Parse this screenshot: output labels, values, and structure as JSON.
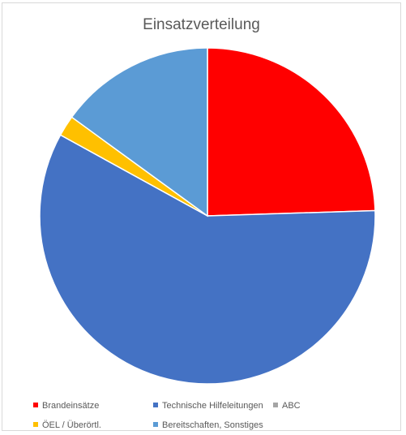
{
  "chart_data": {
    "type": "pie",
    "title": "Einsatzverteilung",
    "categories": [
      "Brandeinsätze",
      "Technische Hilfeleitungen",
      "ABC",
      "ÖEL / Überörtl.",
      "Bereitschaften, Sonstiges"
    ],
    "values": [
      24.5,
      58.5,
      0.0,
      2.0,
      15.0
    ],
    "colors": [
      "#ff0000",
      "#4472c4",
      "#a5a5a5",
      "#ffc000",
      "#5b9bd5"
    ],
    "legend_position": "bottom"
  }
}
